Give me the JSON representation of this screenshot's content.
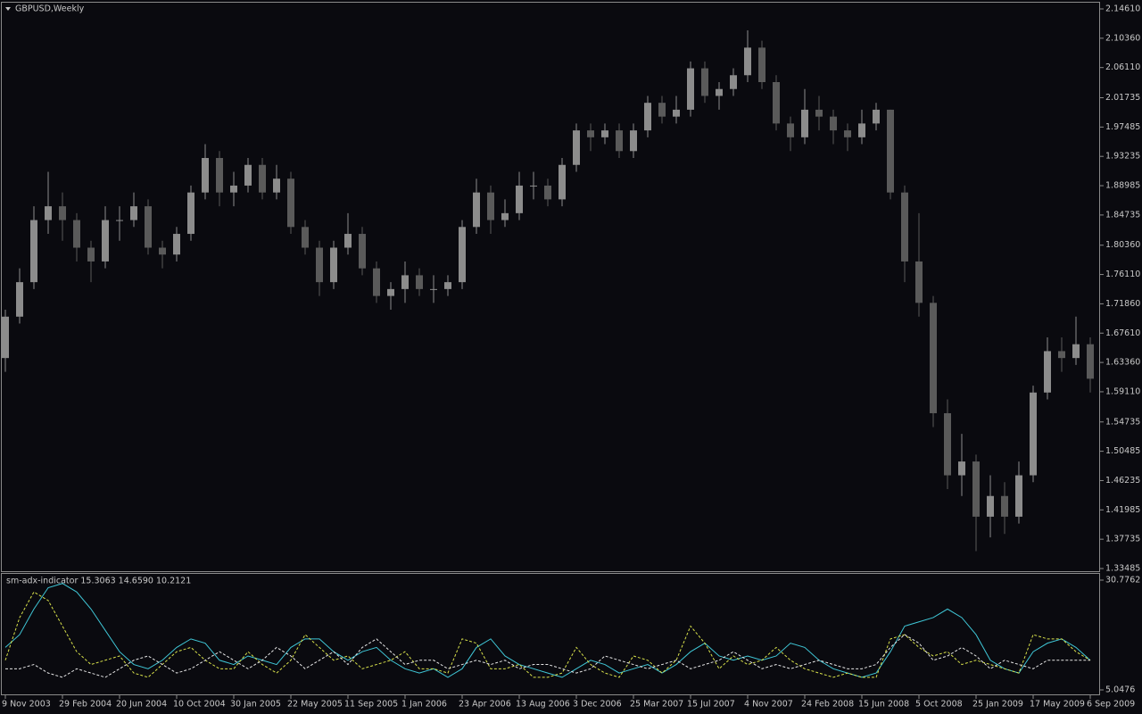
{
  "chart_data": [
    {
      "type": "candlestick",
      "title": "GBPUSD,Weekly",
      "categories": [
        "9 Nov 2003",
        null,
        null,
        null,
        "29 Feb 2004",
        null,
        null,
        null,
        "20 Jun 2004",
        null,
        null,
        null,
        "10 Oct 2004",
        null,
        null,
        null,
        "30 Jan 2005",
        null,
        null,
        null,
        "22 May 2005",
        null,
        null,
        null,
        "11 Sep 2005",
        null,
        null,
        null,
        "1 Jan 2006",
        null,
        null,
        null,
        "23 Apr 2006",
        null,
        null,
        null,
        "13 Aug 2006",
        null,
        null,
        null,
        "3 Dec 2006",
        null,
        null,
        null,
        "25 Mar 2007",
        null,
        null,
        null,
        "15 Jul 2007",
        null,
        null,
        null,
        "4 Nov 2007",
        null,
        null,
        null,
        "24 Feb 2008",
        null,
        null,
        null,
        "15 Jun 2008",
        null,
        null,
        null,
        "5 Oct 2008",
        null,
        null,
        null,
        "25 Jan 2009",
        null,
        null,
        null,
        "17 May 2009",
        null,
        null,
        null,
        "6 Sep 2009"
      ],
      "open": [
        1.64,
        1.7,
        1.75,
        1.84,
        1.86,
        1.84,
        1.8,
        1.78,
        1.84,
        1.84,
        1.86,
        1.8,
        1.79,
        1.82,
        1.88,
        1.93,
        1.88,
        1.89,
        1.92,
        1.88,
        1.9,
        1.83,
        1.8,
        1.75,
        1.8,
        1.82,
        1.77,
        1.73,
        1.74,
        1.76,
        1.74,
        1.74,
        1.75,
        1.83,
        1.88,
        1.84,
        1.85,
        1.89,
        1.89,
        1.87,
        1.92,
        1.97,
        1.96,
        1.97,
        1.94,
        1.97,
        2.01,
        1.99,
        2.0,
        2.06,
        2.02,
        2.03,
        2.05,
        2.09,
        2.04,
        1.98,
        1.96,
        2.0,
        1.99,
        1.97,
        1.96,
        1.98,
        2.0,
        1.88,
        1.78,
        1.72,
        1.56,
        1.47,
        1.49,
        1.41,
        1.44,
        1.41,
        1.47,
        1.59,
        1.65,
        1.64,
        1.66
      ],
      "high": [
        1.71,
        1.77,
        1.86,
        1.91,
        1.88,
        1.85,
        1.81,
        1.86,
        1.86,
        1.88,
        1.87,
        1.81,
        1.83,
        1.89,
        1.95,
        1.94,
        1.91,
        1.93,
        1.93,
        1.92,
        1.91,
        1.84,
        1.81,
        1.81,
        1.85,
        1.83,
        1.78,
        1.75,
        1.78,
        1.77,
        1.76,
        1.76,
        1.84,
        1.9,
        1.89,
        1.87,
        1.91,
        1.91,
        1.9,
        1.93,
        1.98,
        1.98,
        1.98,
        1.98,
        1.98,
        2.02,
        2.02,
        2.02,
        2.07,
        2.07,
        2.04,
        2.06,
        2.115,
        2.1,
        2.05,
        1.99,
        2.03,
        2.02,
        2.0,
        1.98,
        2.0,
        2.01,
        2.0,
        1.89,
        1.85,
        1.73,
        1.58,
        1.53,
        1.5,
        1.47,
        1.46,
        1.49,
        1.6,
        1.67,
        1.67,
        1.7,
        1.67
      ],
      "low": [
        1.62,
        1.69,
        1.74,
        1.82,
        1.81,
        1.78,
        1.75,
        1.77,
        1.81,
        1.83,
        1.79,
        1.77,
        1.78,
        1.81,
        1.87,
        1.86,
        1.86,
        1.88,
        1.87,
        1.87,
        1.82,
        1.79,
        1.73,
        1.74,
        1.79,
        1.76,
        1.72,
        1.71,
        1.72,
        1.73,
        1.72,
        1.73,
        1.74,
        1.82,
        1.82,
        1.83,
        1.84,
        1.87,
        1.86,
        1.86,
        1.91,
        1.94,
        1.95,
        1.93,
        1.93,
        1.96,
        1.98,
        1.98,
        1.99,
        2.01,
        2.0,
        2.02,
        2.04,
        2.03,
        1.97,
        1.94,
        1.95,
        1.97,
        1.95,
        1.94,
        1.95,
        1.97,
        1.87,
        1.75,
        1.7,
        1.54,
        1.45,
        1.44,
        1.36,
        1.38,
        1.385,
        1.4,
        1.46,
        1.58,
        1.62,
        1.63,
        1.59
      ],
      "close": [
        1.7,
        1.75,
        1.84,
        1.86,
        1.84,
        1.8,
        1.78,
        1.84,
        1.84,
        1.86,
        1.8,
        1.79,
        1.82,
        1.88,
        1.93,
        1.88,
        1.89,
        1.92,
        1.88,
        1.9,
        1.83,
        1.8,
        1.75,
        1.8,
        1.82,
        1.77,
        1.73,
        1.74,
        1.76,
        1.74,
        1.74,
        1.75,
        1.83,
        1.88,
        1.84,
        1.85,
        1.89,
        1.89,
        1.87,
        1.92,
        1.97,
        1.96,
        1.97,
        1.94,
        1.97,
        2.01,
        1.99,
        2.0,
        2.06,
        2.02,
        2.03,
        2.05,
        2.09,
        2.04,
        1.98,
        1.96,
        2.0,
        1.99,
        1.97,
        1.96,
        1.98,
        2.0,
        1.88,
        1.78,
        1.72,
        1.56,
        1.47,
        1.49,
        1.41,
        1.44,
        1.41,
        1.47,
        1.59,
        1.65,
        1.64,
        1.66,
        1.61
      ],
      "up_color": "#8c8c8c",
      "down_color": "#5a5a5a",
      "ylim": [
        1.33485,
        2.1461
      ],
      "yticks": [
        {
          "value": 2.1461,
          "label": "2.14610"
        },
        {
          "value": 2.1036,
          "label": "2.10360"
        },
        {
          "value": 2.0611,
          "label": "2.06110"
        },
        2.01735,
        1.97485,
        1.93235,
        1.88985,
        1.84735,
        {
          "value": 1.8036,
          "label": "1.80360"
        },
        {
          "value": 1.7611,
          "label": "1.76110"
        },
        {
          "value": 1.7186,
          "label": "1.71860"
        },
        {
          "value": 1.6761,
          "label": "1.67610"
        },
        {
          "value": 1.6336,
          "label": "1.63360"
        },
        {
          "value": 1.5911,
          "label": "1.59110"
        },
        1.54735,
        1.50485,
        1.46235,
        1.41985,
        1.37735,
        1.33485
      ]
    },
    {
      "type": "line",
      "title": "sm-adx-indicator 15.3063 14.6590 10.2121",
      "series": [
        {
          "color": "#3fc6d6",
          "dashed": false,
          "values": [
            15,
            18,
            24,
            29,
            30,
            28,
            24,
            19,
            14,
            11,
            10,
            12,
            15,
            17,
            16,
            12,
            11,
            13,
            12,
            11,
            15,
            17,
            17,
            14,
            12,
            14,
            15,
            12,
            10,
            9,
            10,
            8,
            10,
            15,
            17,
            13,
            11,
            10,
            9,
            8,
            10,
            12,
            11,
            9,
            10,
            11,
            9,
            11,
            14,
            16,
            13,
            12,
            13,
            12,
            13,
            16,
            15,
            12,
            10,
            9,
            8,
            9,
            14,
            20,
            21,
            22,
            24,
            22,
            18,
            12,
            10,
            9,
            14,
            16,
            17,
            15,
            12
          ]
        },
        {
          "color": "#d7e04a",
          "dashed": true,
          "values": [
            12,
            22,
            28,
            26,
            20,
            14,
            11,
            12,
            13,
            9,
            8,
            11,
            14,
            15,
            12,
            10,
            10,
            14,
            11,
            9,
            12,
            18,
            15,
            12,
            13,
            10,
            11,
            12,
            14,
            10,
            10,
            9,
            17,
            16,
            10,
            10,
            11,
            8,
            8,
            9,
            15,
            11,
            9,
            8,
            13,
            12,
            9,
            12,
            20,
            16,
            10,
            13,
            11,
            12,
            15,
            12,
            10,
            9,
            8,
            9,
            8,
            8,
            17,
            18,
            15,
            13,
            14,
            11,
            12,
            11,
            10,
            9,
            18,
            17,
            17,
            14,
            12
          ]
        },
        {
          "color": "#e6e6e6",
          "dashed": true,
          "values": [
            10,
            10,
            11,
            9,
            8,
            10,
            9,
            8,
            10,
            12,
            13,
            11,
            9,
            10,
            12,
            14,
            12,
            10,
            12,
            15,
            13,
            10,
            12,
            14,
            11,
            15,
            17,
            14,
            11,
            12,
            12,
            10,
            11,
            12,
            11,
            12,
            10,
            11,
            11,
            10,
            9,
            10,
            13,
            12,
            11,
            10,
            11,
            12,
            10,
            11,
            12,
            14,
            12,
            10,
            11,
            10,
            11,
            12,
            11,
            10,
            10,
            11,
            15,
            18,
            16,
            12,
            13,
            15,
            13,
            10,
            12,
            11,
            10,
            12,
            12,
            12,
            12
          ]
        }
      ],
      "ylim": [
        5.0476,
        30.7762
      ],
      "yticks": [
        30.7762,
        5.0476
      ]
    }
  ]
}
